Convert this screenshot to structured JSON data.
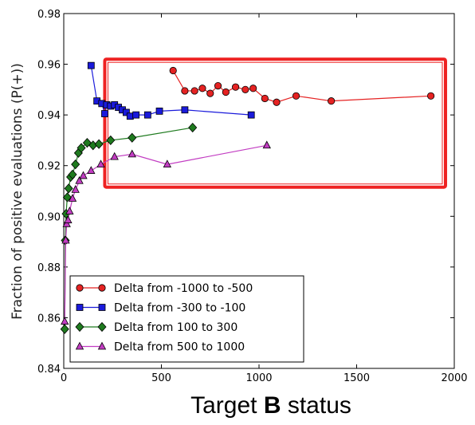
{
  "chart_data": {
    "type": "line",
    "xlabel_prefix": "Target ",
    "xlabel_bold": "B",
    "xlabel_suffix": " status",
    "ylabel": "Fraction of positive evaluations (P(+))",
    "xlim": [
      0,
      2000
    ],
    "ylim": [
      0.84,
      0.98
    ],
    "xticks": [
      0,
      500,
      1000,
      1500,
      2000
    ],
    "yticks": [
      0.84,
      0.86,
      0.88,
      0.9,
      0.92,
      0.94,
      0.96,
      0.98
    ],
    "xtick_labels": [
      "0",
      "500",
      "1000",
      "1500",
      "2000"
    ],
    "ytick_labels": [
      "0.84",
      "0.86",
      "0.88",
      "0.90",
      "0.92",
      "0.94",
      "0.96",
      "0.98"
    ],
    "grid": false,
    "legend_position": "lower-left",
    "highlight_box": {
      "x": [
        210,
        1955
      ],
      "y": [
        0.9115,
        0.962
      ],
      "color": "#ee2222"
    },
    "series": [
      {
        "name": "Delta from -1000 to -500",
        "color": "#e52222",
        "marker": "circle",
        "points": [
          [
            560,
            0.9575
          ],
          [
            620,
            0.9495
          ],
          [
            670,
            0.9495
          ],
          [
            710,
            0.9505
          ],
          [
            750,
            0.9485
          ],
          [
            790,
            0.9515
          ],
          [
            830,
            0.949
          ],
          [
            880,
            0.951
          ],
          [
            930,
            0.95
          ],
          [
            970,
            0.9505
          ],
          [
            1030,
            0.9465
          ],
          [
            1090,
            0.945
          ],
          [
            1190,
            0.9475
          ],
          [
            1370,
            0.9455
          ],
          [
            1880,
            0.9475
          ]
        ]
      },
      {
        "name": "Delta from -300 to -100",
        "color": "#1a1adb",
        "marker": "square",
        "points": [
          [
            140,
            0.9595
          ],
          [
            170,
            0.9455
          ],
          [
            195,
            0.9445
          ],
          [
            210,
            0.9405
          ],
          [
            220,
            0.944
          ],
          [
            240,
            0.9435
          ],
          [
            260,
            0.944
          ],
          [
            280,
            0.943
          ],
          [
            300,
            0.942
          ],
          [
            320,
            0.941
          ],
          [
            340,
            0.9395
          ],
          [
            370,
            0.94
          ],
          [
            430,
            0.94
          ],
          [
            490,
            0.9415
          ],
          [
            620,
            0.942
          ],
          [
            960,
            0.94
          ]
        ]
      },
      {
        "name": "Delta from 100 to 300",
        "color": "#1e7a1e",
        "marker": "diamond",
        "points": [
          [
            5,
            0.8555
          ],
          [
            8,
            0.8905
          ],
          [
            12,
            0.901
          ],
          [
            18,
            0.9075
          ],
          [
            25,
            0.911
          ],
          [
            35,
            0.9155
          ],
          [
            45,
            0.9165
          ],
          [
            60,
            0.9205
          ],
          [
            75,
            0.925
          ],
          [
            90,
            0.927
          ],
          [
            120,
            0.929
          ],
          [
            150,
            0.928
          ],
          [
            180,
            0.9285
          ],
          [
            240,
            0.93
          ],
          [
            350,
            0.931
          ],
          [
            660,
            0.935
          ]
        ]
      },
      {
        "name": "Delta from 500 to 1000",
        "color": "#c23cc2",
        "marker": "triangle",
        "points": [
          [
            5,
            0.8585
          ],
          [
            10,
            0.8905
          ],
          [
            15,
            0.897
          ],
          [
            22,
            0.8985
          ],
          [
            30,
            0.902
          ],
          [
            45,
            0.907
          ],
          [
            60,
            0.9105
          ],
          [
            80,
            0.914
          ],
          [
            100,
            0.916
          ],
          [
            140,
            0.918
          ],
          [
            190,
            0.9205
          ],
          [
            260,
            0.9235
          ],
          [
            350,
            0.9245
          ],
          [
            530,
            0.9205
          ],
          [
            1040,
            0.928
          ]
        ]
      }
    ]
  }
}
